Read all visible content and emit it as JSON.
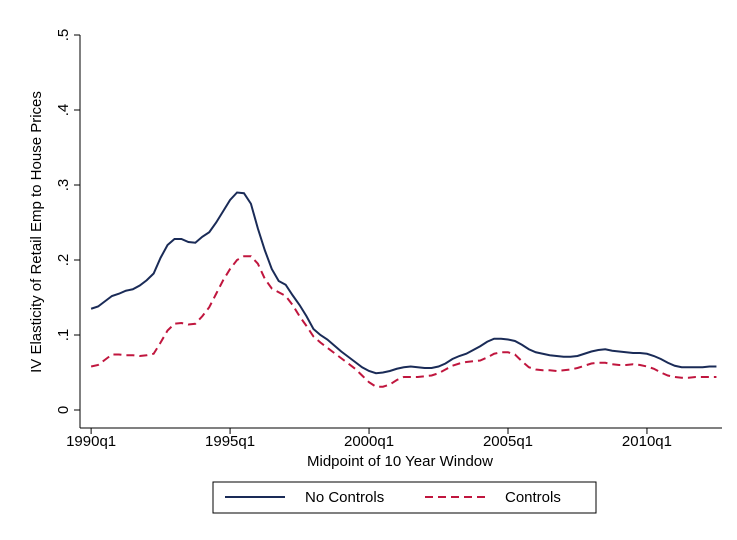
{
  "chart_data": {
    "type": "line",
    "x_label": "Midpoint of 10 Year Window",
    "y_label": "IV Elasticity of Retail Emp to House Prices",
    "x": [
      1990,
      1990.25,
      1990.5,
      1990.75,
      1991,
      1991.25,
      1991.5,
      1991.75,
      1992,
      1992.25,
      1992.5,
      1992.75,
      1993,
      1993.25,
      1993.5,
      1993.75,
      1994,
      1994.25,
      1994.5,
      1994.75,
      1995,
      1995.25,
      1995.5,
      1995.75,
      1996,
      1996.25,
      1996.5,
      1996.75,
      1997,
      1997.25,
      1997.5,
      1997.75,
      1998,
      1998.25,
      1998.5,
      1998.75,
      1999,
      1999.25,
      1999.5,
      1999.75,
      2000,
      2000.25,
      2000.5,
      2000.75,
      2001,
      2001.25,
      2001.5,
      2001.75,
      2002,
      2002.25,
      2002.5,
      2002.75,
      2003,
      2003.25,
      2003.5,
      2003.75,
      2004,
      2004.25,
      2004.5,
      2004.75,
      2005,
      2005.25,
      2005.5,
      2005.75,
      2006,
      2006.25,
      2006.5,
      2006.75,
      2007,
      2007.25,
      2007.5,
      2007.75,
      2008,
      2008.25,
      2008.5,
      2008.75,
      2009,
      2009.25,
      2009.5,
      2009.75,
      2010,
      2010.25,
      2010.5,
      2010.75,
      2011,
      2011.25,
      2011.5,
      2011.75,
      2012,
      2012.25,
      2012.5
    ],
    "series": [
      {
        "name": "No Controls",
        "color": "#1a2b57",
        "dash": "solid",
        "values": [
          0.135,
          0.138,
          0.145,
          0.152,
          0.155,
          0.159,
          0.161,
          0.166,
          0.173,
          0.182,
          0.203,
          0.22,
          0.228,
          0.228,
          0.224,
          0.223,
          0.231,
          0.237,
          0.25,
          0.265,
          0.28,
          0.29,
          0.289,
          0.275,
          0.242,
          0.213,
          0.188,
          0.172,
          0.167,
          0.153,
          0.14,
          0.125,
          0.108,
          0.1,
          0.094,
          0.086,
          0.078,
          0.071,
          0.064,
          0.057,
          0.052,
          0.049,
          0.05,
          0.052,
          0.055,
          0.057,
          0.058,
          0.057,
          0.056,
          0.056,
          0.058,
          0.062,
          0.068,
          0.072,
          0.075,
          0.08,
          0.085,
          0.091,
          0.095,
          0.095,
          0.094,
          0.092,
          0.087,
          0.081,
          0.077,
          0.075,
          0.073,
          0.072,
          0.071,
          0.071,
          0.072,
          0.075,
          0.078,
          0.08,
          0.081,
          0.079,
          0.078,
          0.077,
          0.076,
          0.076,
          0.075,
          0.072,
          0.068,
          0.063,
          0.059,
          0.057,
          0.057,
          0.057,
          0.057,
          0.058,
          0.058
        ]
      },
      {
        "name": "Controls",
        "color": "#c0163e",
        "dash": "dashed",
        "values": [
          0.058,
          0.06,
          0.067,
          0.074,
          0.074,
          0.073,
          0.073,
          0.072,
          0.073,
          0.075,
          0.09,
          0.106,
          0.115,
          0.116,
          0.114,
          0.115,
          0.125,
          0.137,
          0.155,
          0.173,
          0.188,
          0.2,
          0.205,
          0.205,
          0.195,
          0.175,
          0.162,
          0.157,
          0.152,
          0.14,
          0.125,
          0.112,
          0.098,
          0.09,
          0.083,
          0.076,
          0.069,
          0.062,
          0.055,
          0.046,
          0.037,
          0.031,
          0.031,
          0.034,
          0.04,
          0.044,
          0.044,
          0.044,
          0.045,
          0.046,
          0.049,
          0.054,
          0.059,
          0.062,
          0.064,
          0.065,
          0.066,
          0.07,
          0.075,
          0.077,
          0.077,
          0.074,
          0.065,
          0.057,
          0.054,
          0.053,
          0.053,
          0.052,
          0.053,
          0.054,
          0.056,
          0.059,
          0.062,
          0.063,
          0.063,
          0.061,
          0.06,
          0.06,
          0.061,
          0.06,
          0.058,
          0.055,
          0.05,
          0.046,
          0.044,
          0.043,
          0.043,
          0.044,
          0.044,
          0.044,
          0.044
        ]
      }
    ],
    "xlim": [
      1989.6,
      2012.7
    ],
    "xticks": [
      {
        "value": 1990,
        "label": "1990q1"
      },
      {
        "value": 1995,
        "label": "1995q1"
      },
      {
        "value": 2000,
        "label": "2000q1"
      },
      {
        "value": 2005,
        "label": "2005q1"
      },
      {
        "value": 2010,
        "label": "2010q1"
      }
    ],
    "ylim": [
      -0.024,
      0.5
    ],
    "yticks": [
      0,
      {
        "value": 0.1,
        "label": ".1"
      },
      {
        "value": 0.2,
        "label": ".2"
      },
      {
        "value": 0.3,
        "label": ".3"
      },
      {
        "value": 0.4,
        "label": ".4"
      },
      {
        "value": 0.5,
        "label": ".5"
      }
    ],
    "grid": false,
    "legend": "bottom"
  }
}
